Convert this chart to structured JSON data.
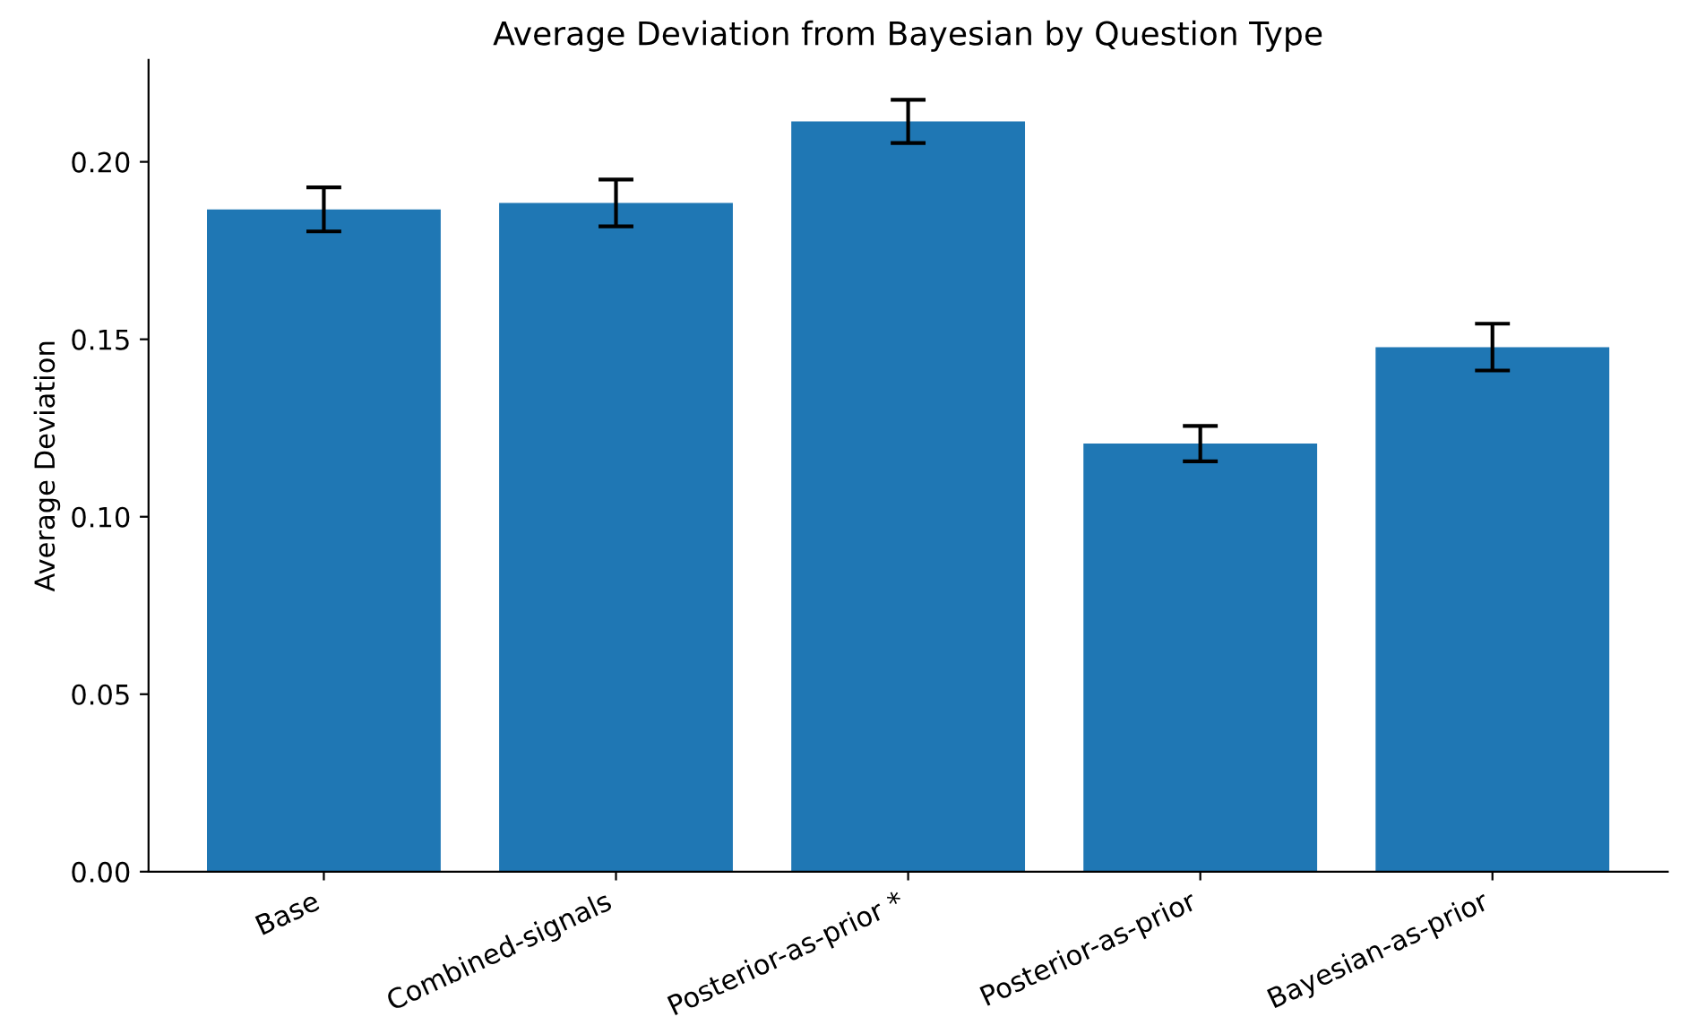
{
  "chart_data": {
    "type": "bar",
    "title": "Average Deviation from Bayesian by Question Type",
    "ylabel": "Average Deviation",
    "categories": [
      "Base",
      "Combined-signals",
      "Posterior-as-prior *",
      "Posterior-as-prior",
      "Bayesian-as-prior"
    ],
    "values": [
      0.1866,
      0.1884,
      0.2114,
      0.1206,
      0.1478
    ],
    "errors": [
      0.0062,
      0.0066,
      0.0061,
      0.005,
      0.0066
    ],
    "color": "#1f77b4",
    "ylim": [
      0,
      0.2287
    ],
    "yticks": [
      {
        "value": 0,
        "label": "0.00"
      },
      {
        "value": 0.05,
        "label": "0.05"
      },
      {
        "value": 0.1,
        "label": "0.10"
      },
      {
        "value": 0.15,
        "label": "0.15"
      },
      {
        "value": 0.2,
        "label": "0.20"
      }
    ],
    "grid": false,
    "legend": false
  }
}
